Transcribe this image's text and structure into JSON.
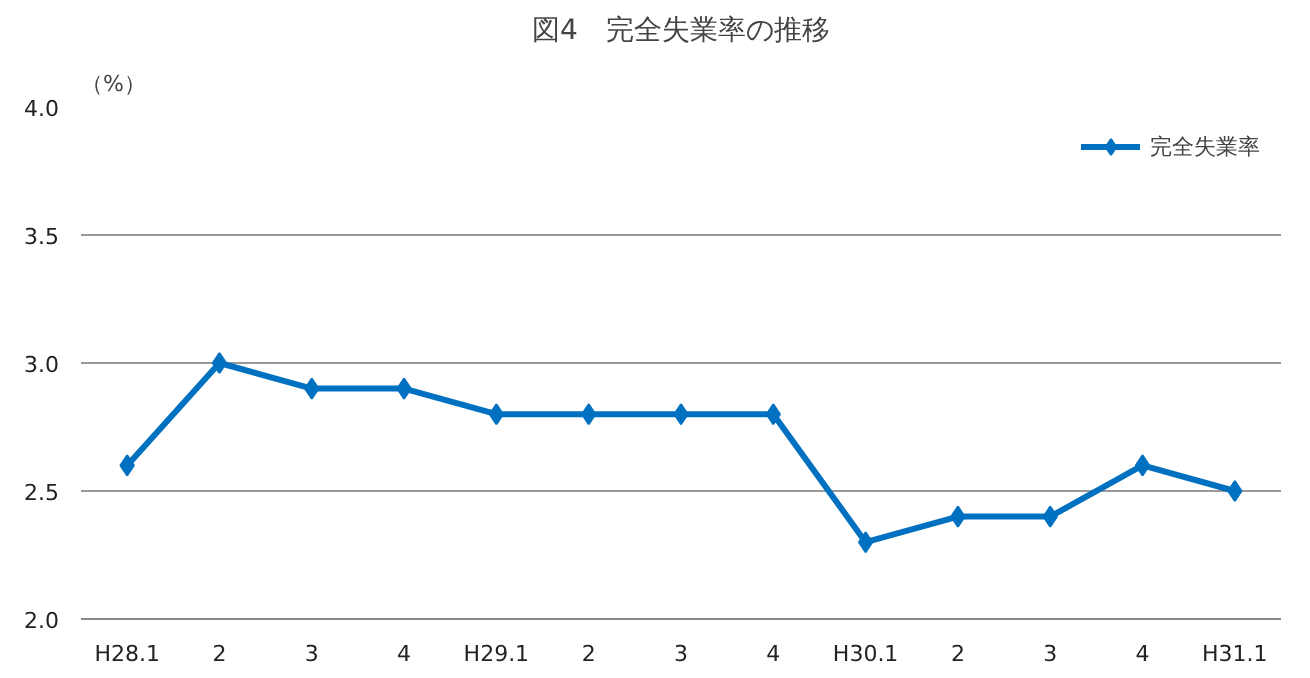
{
  "chart_data": {
    "type": "line",
    "title": "図4　完全失業率の推移",
    "ylabel": "（%）",
    "categories": [
      "H28.1",
      "2",
      "3",
      "4",
      "H29.1",
      "2",
      "3",
      "4",
      "H30.1",
      "2",
      "3",
      "4",
      "H31.1"
    ],
    "series": [
      {
        "name": "完全失業率",
        "color": "#0070c0",
        "values": [
          2.6,
          3.0,
          2.9,
          2.9,
          2.8,
          2.8,
          2.8,
          2.8,
          2.3,
          2.4,
          2.4,
          2.6,
          2.5
        ]
      }
    ],
    "ylim": [
      2.0,
      4.0
    ],
    "yticks": [
      {
        "value": 2.0,
        "label": "2.0"
      },
      {
        "value": 2.5,
        "label": "2.5"
      },
      {
        "value": 3.0,
        "label": "3.0"
      },
      {
        "value": 3.5,
        "label": "3.5"
      },
      {
        "value": 4.0,
        "label": "4.0"
      }
    ],
    "grid": "y",
    "legend": "top right",
    "marker": "diamond",
    "line_style": "solid"
  }
}
